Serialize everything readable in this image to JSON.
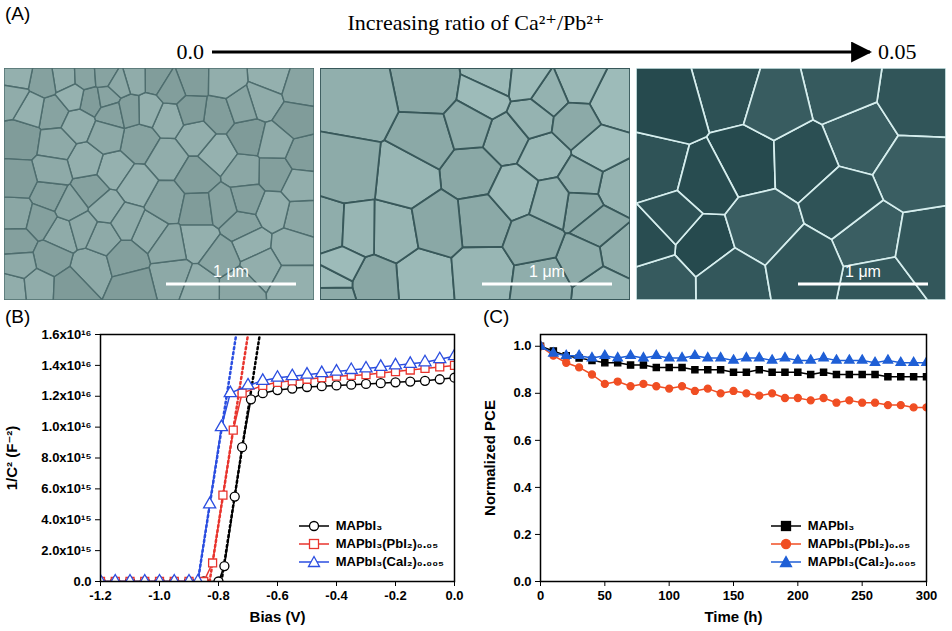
{
  "panel_a": {
    "label": "(A)",
    "title": "Increasing ratio of Ca²⁺/Pb²⁺",
    "start": "0.0",
    "end": "0.05",
    "scale_bars": [
      "1 μm",
      "1 μm",
      "1 μm"
    ]
  },
  "chart_data": [
    {
      "type": "line",
      "panel_label": "(B)",
      "x_label": "Bias (V)",
      "y_label": "1/C² (F⁻²)",
      "xlim": [
        -1.2,
        0.0
      ],
      "xticks": [
        -1.2,
        {
          "value": -1.0,
          "label": "-1.0"
        },
        -0.8,
        -0.6,
        -0.4,
        -0.2,
        {
          "value": 0,
          "label": "0.0"
        }
      ],
      "ylim": [
        0,
        1.6e+16
      ],
      "yticks": [
        {
          "value": 0,
          "label": "0.0"
        },
        {
          "value": 2000000000000000.0,
          "label": "2.0x10¹⁵"
        },
        {
          "value": 4000000000000000.0,
          "label": "4.0x10¹⁵"
        },
        {
          "value": 6000000000000000.0,
          "label": "6.0x10¹⁵"
        },
        {
          "value": 8000000000000000.0,
          "label": "8.0x10¹⁵"
        },
        {
          "value": 1e+16,
          "label": "1.0x10¹⁶"
        },
        {
          "value": 1.2e+16,
          "label": "1.2x10¹⁶"
        },
        {
          "value": 1.4e+16,
          "label": "1.4x10¹⁶"
        },
        {
          "value": 1.6e+16,
          "label": "1.6x10¹⁶"
        }
      ],
      "legend": "lower right",
      "series": [
        {
          "name": "MAPbI₃",
          "color": "#000000",
          "marker": "open_circle",
          "line_style": "solid",
          "x": [
            -1.2,
            -1.15,
            -1.1,
            -1.05,
            -1.0,
            -0.95,
            -0.9,
            -0.85,
            -0.8,
            -0.78,
            -0.745,
            -0.72,
            -0.69,
            -0.65,
            -0.6,
            -0.55,
            -0.5,
            -0.45,
            -0.4,
            -0.35,
            -0.3,
            -0.25,
            -0.2,
            -0.15,
            -0.1,
            -0.05,
            0.0
          ],
          "values": [
            0,
            0,
            0,
            0,
            0,
            0,
            0,
            0,
            0,
            1000000000000000.0,
            5500000000000000.0,
            8700000000000000.0,
            1.18e+16,
            1.22e+16,
            1.24e+16,
            1.25e+16,
            1.26e+16,
            1.265e+16,
            1.27e+16,
            1.275e+16,
            1.28e+16,
            1.285e+16,
            1.29e+16,
            1.295e+16,
            1.3e+16,
            1.31e+16,
            1.32e+16
          ],
          "fit": {
            "line_style": "dotted",
            "x": [
              -0.79,
              -0.66
            ],
            "values": [
              0,
              1.6e+16
            ]
          }
        },
        {
          "name": "MAPbI₃(PbI₂)₀.₀₅",
          "color": "#e8352e",
          "marker": "open_square",
          "line_style": "solid",
          "x": [
            -1.2,
            -1.15,
            -1.1,
            -1.05,
            -1.0,
            -0.95,
            -0.9,
            -0.85,
            -0.82,
            -0.785,
            -0.75,
            -0.72,
            -0.65,
            -0.6,
            -0.55,
            -0.5,
            -0.45,
            -0.4,
            -0.35,
            -0.3,
            -0.25,
            -0.2,
            -0.15,
            -0.1,
            -0.05,
            0.0
          ],
          "values": [
            0,
            0,
            0,
            0,
            0,
            0,
            0,
            0,
            1200000000000000.0,
            5600000000000000.0,
            9800000000000000.0,
            1.22e+16,
            1.27e+16,
            1.29e+16,
            1.3e+16,
            1.31e+16,
            1.32e+16,
            1.33e+16,
            1.335e+16,
            1.34e+16,
            1.35e+16,
            1.36e+16,
            1.37e+16,
            1.38e+16,
            1.39e+16,
            1.4e+16
          ],
          "fit": {
            "line_style": "dotted",
            "x": [
              -0.83,
              -0.7
            ],
            "values": [
              0,
              1.6e+16
            ]
          }
        },
        {
          "name": "MAPbI₃(CaI₂)₀.₀₀₅",
          "color": "#2b4ee0",
          "marker": "open_triangle",
          "line_style": "solid",
          "x": [
            -1.2,
            -1.15,
            -1.1,
            -1.05,
            -1.0,
            -0.95,
            -0.9,
            -0.87,
            -0.83,
            -0.79,
            -0.76,
            -0.7,
            -0.65,
            -0.6,
            -0.55,
            -0.5,
            -0.45,
            -0.4,
            -0.35,
            -0.3,
            -0.25,
            -0.2,
            -0.15,
            -0.1,
            -0.05,
            0.0
          ],
          "values": [
            0,
            0,
            0,
            0,
            0,
            0,
            0,
            0,
            5000000000000000.0,
            1e+16,
            1.22e+16,
            1.27e+16,
            1.3e+16,
            1.32e+16,
            1.33e+16,
            1.34e+16,
            1.35e+16,
            1.36e+16,
            1.37e+16,
            1.38e+16,
            1.39e+16,
            1.4e+16,
            1.41e+16,
            1.42e+16,
            1.44e+16,
            1.46e+16
          ],
          "fit": {
            "line_style": "dotted",
            "x": [
              -0.87,
              -0.74
            ],
            "values": [
              0,
              1.6e+16
            ]
          }
        }
      ]
    },
    {
      "type": "line",
      "panel_label": "(C)",
      "x_label": "Time (h)",
      "y_label": "Normalized PCE",
      "xlim": [
        0,
        300
      ],
      "xticks": [
        0,
        50,
        100,
        150,
        200,
        250,
        300
      ],
      "ylim": [
        0,
        1.05
      ],
      "yticks": [
        {
          "value": 0,
          "label": "0.0"
        },
        0.2,
        0.4,
        0.6,
        0.8,
        {
          "value": 1,
          "label": "1.0"
        }
      ],
      "legend": "lower right",
      "x": [
        0,
        10,
        20,
        30,
        40,
        50,
        60,
        70,
        80,
        90,
        100,
        110,
        120,
        130,
        140,
        150,
        160,
        170,
        180,
        190,
        200,
        210,
        220,
        230,
        240,
        250,
        260,
        270,
        280,
        290,
        300
      ],
      "series": [
        {
          "name": "MAPbI₃",
          "color": "#000000",
          "marker": "square",
          "line_style": "solid",
          "values": [
            1.0,
            0.98,
            0.96,
            0.95,
            0.94,
            0.93,
            0.93,
            0.92,
            0.92,
            0.91,
            0.91,
            0.91,
            0.9,
            0.9,
            0.9,
            0.89,
            0.89,
            0.9,
            0.89,
            0.89,
            0.89,
            0.88,
            0.89,
            0.88,
            0.88,
            0.88,
            0.88,
            0.87,
            0.87,
            0.87,
            0.87
          ]
        },
        {
          "name": "MAPbI₃(PbI₂)₀.₀₅",
          "color": "#f04e23",
          "marker": "circle",
          "line_style": "solid",
          "values": [
            1.0,
            0.96,
            0.93,
            0.91,
            0.88,
            0.84,
            0.85,
            0.83,
            0.84,
            0.83,
            0.82,
            0.83,
            0.81,
            0.82,
            0.8,
            0.81,
            0.8,
            0.79,
            0.8,
            0.78,
            0.78,
            0.77,
            0.78,
            0.76,
            0.77,
            0.76,
            0.76,
            0.75,
            0.75,
            0.74,
            0.74
          ]
        },
        {
          "name": "MAPbI₃(CaI₂)₀.₀₀₅",
          "color": "#1f5fd6",
          "marker": "triangle",
          "line_style": "solid",
          "values": [
            1.0,
            0.97,
            0.96,
            0.96,
            0.95,
            0.96,
            0.95,
            0.96,
            0.95,
            0.96,
            0.95,
            0.95,
            0.96,
            0.95,
            0.95,
            0.94,
            0.95,
            0.95,
            0.94,
            0.95,
            0.94,
            0.94,
            0.95,
            0.94,
            0.94,
            0.94,
            0.93,
            0.94,
            0.93,
            0.93,
            0.93
          ]
        }
      ]
    }
  ]
}
